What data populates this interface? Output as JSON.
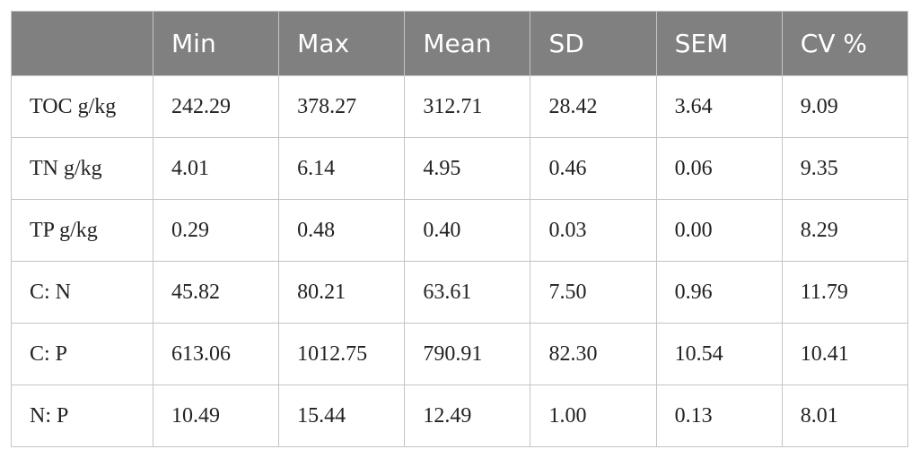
{
  "table": {
    "header": [
      "Min",
      "Max",
      "Mean",
      "SD",
      "SEM",
      "CV %"
    ],
    "rows": [
      [
        "TOC g/kg",
        "242.29",
        "378.27",
        "312.71",
        "28.42",
        "3.64",
        "9.09"
      ],
      [
        "TN g/kg",
        "4.01",
        "6.14",
        "4.95",
        "0.46",
        "0.06",
        "9.35"
      ],
      [
        "TP g/kg",
        "0.29",
        "0.48",
        "0.40",
        "0.03",
        "0.00",
        "8.29"
      ],
      [
        "C: N",
        "45.82",
        "80.21",
        "63.61",
        "7.50",
        "0.96",
        "11.79"
      ],
      [
        "C: P",
        "613.06",
        "1012.75",
        "790.91",
        "82.30",
        "10.54",
        "10.41"
      ],
      [
        "N: P",
        "10.49",
        "15.44",
        "12.49",
        "1.00",
        "0.13",
        "8.01"
      ]
    ]
  }
}
